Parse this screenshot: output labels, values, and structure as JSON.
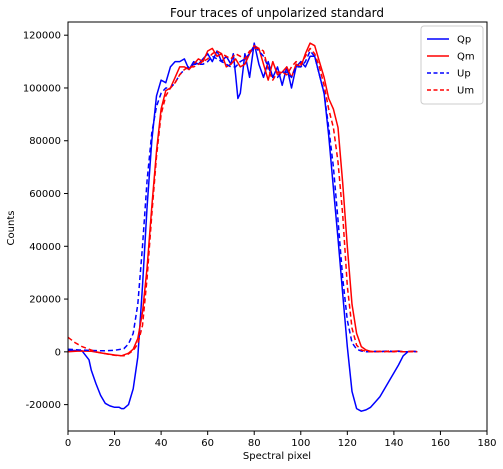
{
  "chart_data": {
    "type": "line",
    "title": "Four traces of unpolarized standard",
    "xlabel": "Spectral pixel",
    "ylabel": "Counts",
    "xlim": [
      0,
      180
    ],
    "ylim": [
      -30000,
      125000
    ],
    "xticks": [
      0,
      20,
      40,
      60,
      80,
      100,
      120,
      140,
      160,
      180
    ],
    "yticks": [
      -20000,
      0,
      20000,
      40000,
      60000,
      80000,
      100000,
      120000
    ],
    "legend": "top-right",
    "grid": false,
    "series": [
      {
        "name": "Qp",
        "color": "#0000ff",
        "dash": "solid",
        "x": [
          0,
          3,
          6,
          9,
          10,
          12,
          14,
          16,
          18,
          20,
          22,
          23,
          24,
          26,
          28,
          30,
          32,
          34,
          36,
          38,
          40,
          42,
          44,
          46,
          48,
          50,
          52,
          54,
          56,
          58,
          60,
          62,
          64,
          66,
          68,
          70,
          71,
          72,
          73,
          74,
          76,
          78,
          80,
          82,
          84,
          86,
          88,
          90,
          92,
          94,
          96,
          98,
          100,
          102,
          104,
          106,
          108,
          110,
          112,
          114,
          116,
          118,
          120,
          122,
          124,
          126,
          128,
          130,
          132,
          134,
          136,
          138,
          140,
          142,
          144,
          146,
          148,
          150
        ],
        "y": [
          500,
          500,
          400,
          -3000,
          -7000,
          -12000,
          -16500,
          -19500,
          -20500,
          -21000,
          -21000,
          -21500,
          -21500,
          -20000,
          -14000,
          -2000,
          25000,
          55000,
          80000,
          97000,
          103000,
          102000,
          108000,
          110000,
          110000,
          111000,
          107000,
          110000,
          109000,
          111000,
          113000,
          110000,
          114000,
          110000,
          112000,
          109000,
          113000,
          105000,
          96000,
          98000,
          113000,
          104000,
          117000,
          109000,
          104000,
          110000,
          104000,
          108000,
          101000,
          108000,
          100000,
          108000,
          110000,
          108000,
          112000,
          112000,
          105000,
          98000,
          82000,
          62000,
          43000,
          22000,
          2000,
          -15000,
          -21500,
          -22500,
          -22000,
          -21000,
          -19000,
          -17000,
          -14000,
          -11000,
          -8000,
          -5000,
          -1500,
          0,
          200,
          0
        ]
      },
      {
        "name": "Qm",
        "color": "#ff0000",
        "dash": "solid",
        "x": [
          0,
          5,
          10,
          15,
          20,
          23,
          26,
          28,
          30,
          32,
          34,
          36,
          38,
          40,
          42,
          44,
          46,
          48,
          50,
          52,
          54,
          56,
          58,
          60,
          62,
          64,
          66,
          68,
          70,
          72,
          74,
          76,
          78,
          80,
          82,
          84,
          86,
          88,
          90,
          92,
          94,
          96,
          98,
          100,
          102,
          104,
          106,
          108,
          110,
          112,
          114,
          116,
          118,
          120,
          122,
          124,
          126,
          128,
          130,
          132,
          134,
          136,
          138,
          140,
          142,
          144,
          146,
          148,
          150
        ],
        "y": [
          0,
          300,
          200,
          -500,
          -1200,
          -1500,
          -500,
          1000,
          5000,
          15000,
          32000,
          55000,
          76000,
          92000,
          99000,
          100000,
          104000,
          108000,
          108000,
          107000,
          109000,
          111000,
          110000,
          114000,
          115000,
          112000,
          113000,
          108000,
          109000,
          111000,
          108000,
          109000,
          113000,
          116000,
          115000,
          109000,
          103000,
          110000,
          105000,
          106000,
          108000,
          104000,
          109000,
          108000,
          113000,
          117000,
          116000,
          110000,
          104000,
          96000,
          92000,
          85000,
          64000,
          40000,
          18000,
          7000,
          2000,
          700,
          200,
          0,
          100,
          200,
          0,
          200,
          300,
          0,
          100,
          200,
          0
        ]
      },
      {
        "name": "Up",
        "color": "#0000ff",
        "dash": "dashed",
        "x": [
          0,
          5,
          10,
          15,
          20,
          24,
          26,
          28,
          30,
          32,
          34,
          36,
          38,
          40,
          42,
          44,
          46,
          48,
          50,
          52,
          54,
          56,
          58,
          60,
          62,
          64,
          66,
          68,
          70,
          72,
          74,
          76,
          78,
          80,
          82,
          84,
          86,
          88,
          90,
          92,
          94,
          96,
          98,
          100,
          102,
          104,
          106,
          108,
          110,
          112,
          114,
          116,
          118,
          120,
          122,
          124,
          126,
          128,
          130,
          132,
          134,
          136,
          138,
          140,
          142,
          144,
          146,
          148,
          150
        ],
        "y": [
          1000,
          700,
          500,
          400,
          600,
          1200,
          3000,
          7000,
          18000,
          40000,
          65000,
          83000,
          93000,
          98000,
          100000,
          100000,
          102000,
          105000,
          107000,
          108000,
          109000,
          109000,
          109000,
          110000,
          112000,
          111000,
          110000,
          109000,
          108000,
          108000,
          110000,
          111000,
          113000,
          116000,
          114000,
          112000,
          108000,
          104000,
          104000,
          106000,
          106000,
          104000,
          108000,
          108000,
          110000,
          114000,
          112000,
          105000,
          98000,
          85000,
          70000,
          50000,
          28000,
          12000,
          3500,
          1000,
          300,
          0,
          0,
          200,
          0,
          200,
          300,
          0,
          200,
          0,
          0,
          200,
          0
        ]
      },
      {
        "name": "Um",
        "color": "#ff0000",
        "dash": "dashed",
        "x": [
          0,
          3,
          6,
          9,
          12,
          15,
          18,
          20,
          22,
          24,
          26,
          28,
          30,
          32,
          34,
          36,
          38,
          40,
          42,
          44,
          46,
          48,
          50,
          52,
          54,
          56,
          58,
          60,
          62,
          64,
          66,
          68,
          70,
          72,
          74,
          76,
          78,
          80,
          82,
          84,
          86,
          88,
          90,
          92,
          94,
          96,
          98,
          100,
          102,
          104,
          106,
          108,
          110,
          112,
          114,
          116,
          118,
          120,
          122,
          124,
          126,
          128,
          130,
          132,
          134,
          136,
          138,
          140,
          142,
          144,
          146,
          148,
          150
        ],
        "y": [
          5500,
          3500,
          2000,
          1000,
          0,
          -500,
          -1000,
          -1300,
          -1500,
          -1500,
          -800,
          500,
          3000,
          10000,
          28000,
          52000,
          74000,
          90000,
          97000,
          100000,
          102000,
          105000,
          107000,
          108000,
          108000,
          109000,
          110000,
          111000,
          113000,
          114000,
          113000,
          112000,
          111000,
          113000,
          112000,
          111000,
          114000,
          115000,
          115000,
          114000,
          107000,
          103000,
          106000,
          106000,
          105000,
          108000,
          110000,
          109000,
          112000,
          115000,
          113000,
          108000,
          101000,
          92000,
          85000,
          72000,
          52000,
          25000,
          9000,
          2500,
          700,
          200,
          0,
          100,
          200,
          0,
          300,
          0,
          200,
          0,
          100,
          0,
          0
        ]
      }
    ]
  }
}
